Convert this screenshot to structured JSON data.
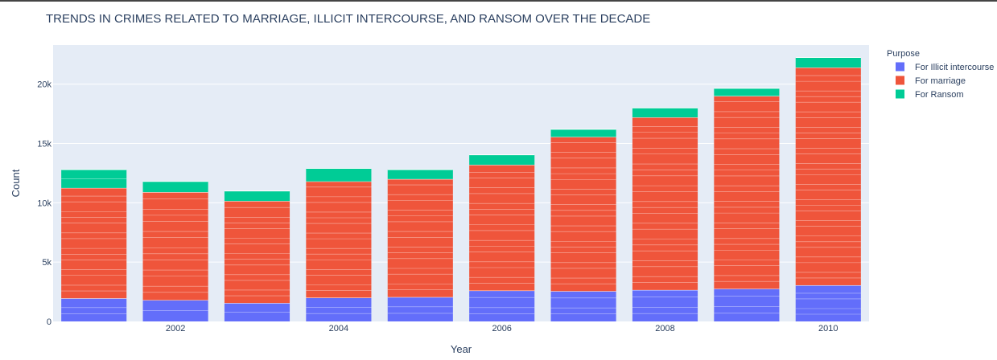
{
  "chart_data": {
    "type": "bar",
    "stacked": true,
    "title": "TRENDS IN CRIMES RELATED TO MARRIAGE, ILLICIT INTERCOURSE, AND RANSOM OVER THE DECADE",
    "xlabel": "Year",
    "ylabel": "Count",
    "legend_title": "Purpose",
    "legend_position": "right",
    "grid": true,
    "categories": [
      2001,
      2002,
      2003,
      2004,
      2005,
      2006,
      2007,
      2008,
      2009,
      2010
    ],
    "x_tick_labels": [
      "2002",
      "2004",
      "2006",
      "2008",
      "2010"
    ],
    "x_tick_values": [
      2002,
      2004,
      2006,
      2008,
      2010
    ],
    "y_tick_values": [
      0,
      5000,
      10000,
      15000,
      20000
    ],
    "y_tick_labels": [
      "0",
      "5k",
      "10k",
      "15k",
      "20k"
    ],
    "ylim": [
      0,
      23300
    ],
    "series": [
      {
        "name": "For Illicit intercourse",
        "color": "#636efa",
        "values": [
          1950,
          1800,
          1550,
          2000,
          2050,
          2600,
          2550,
          2650,
          2750,
          3050
        ]
      },
      {
        "name": "For marriage",
        "color": "#ef553b",
        "values": [
          9300,
          9100,
          8600,
          9800,
          9950,
          10600,
          13000,
          14550,
          16250,
          18350
        ]
      },
      {
        "name": "For Ransom",
        "color": "#00cc96",
        "values": [
          1550,
          900,
          850,
          1100,
          800,
          850,
          650,
          800,
          650,
          850
        ]
      }
    ]
  }
}
